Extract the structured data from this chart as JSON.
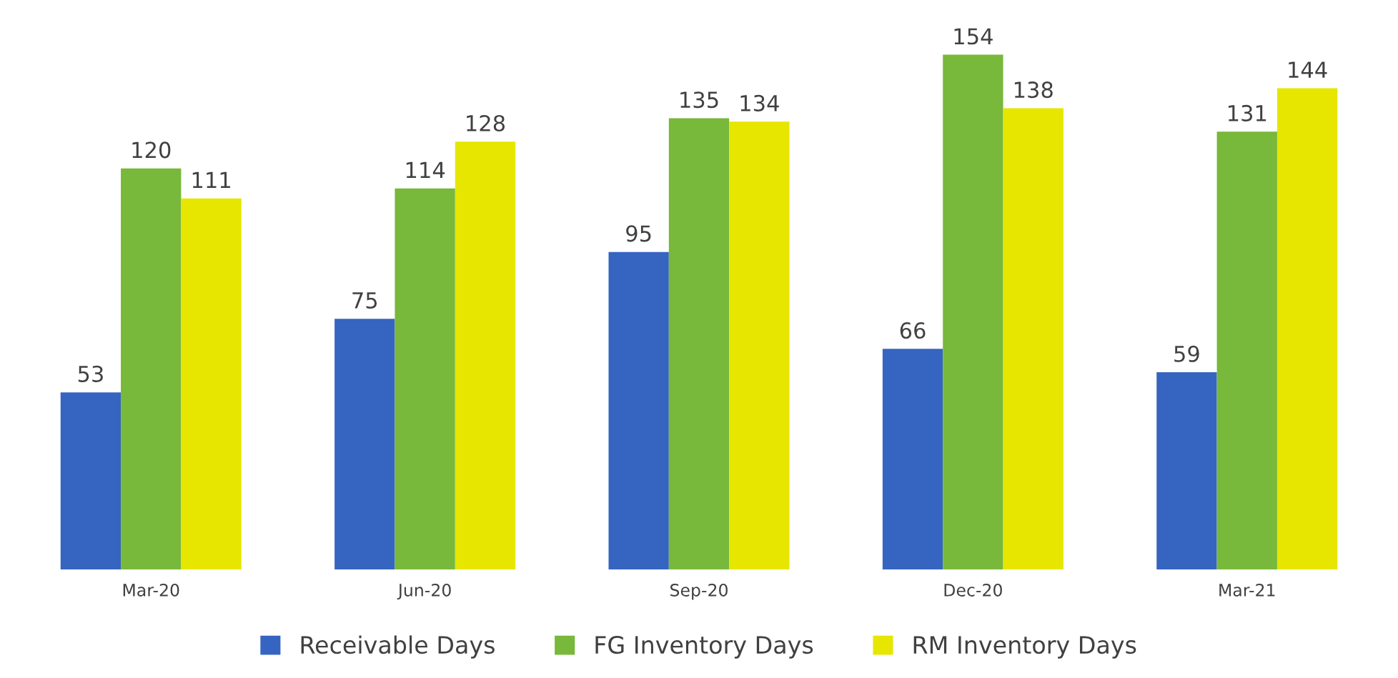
{
  "chart_data": {
    "type": "bar",
    "categories": [
      "Mar-20",
      "Jun-20",
      "Sep-20",
      "Dec-20",
      "Mar-21"
    ],
    "series": [
      {
        "name": "Receivable Days",
        "color": "#3565c0",
        "values": [
          53,
          75,
          95,
          66,
          59
        ]
      },
      {
        "name": "FG Inventory Days",
        "color": "#78b83a",
        "values": [
          120,
          114,
          135,
          154,
          131
        ]
      },
      {
        "name": "RM Inventory Days",
        "color": "#e6e600",
        "values": [
          111,
          128,
          134,
          138,
          144
        ]
      }
    ],
    "data_labels": true,
    "grid": false,
    "legend": "bottom"
  }
}
